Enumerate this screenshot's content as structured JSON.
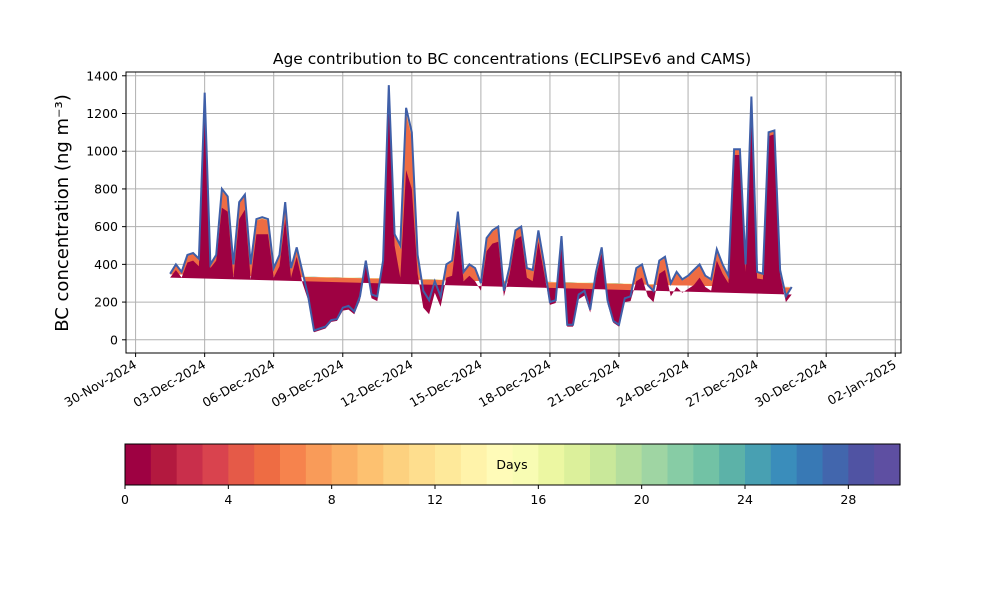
{
  "chart_data": {
    "type": "area",
    "title": "Age contribution to BC concentrations (ECLIPSEv6 and CAMS)",
    "ylabel": "BC concentration (ng m⁻³)",
    "xlabel": "",
    "ylim": [
      -70,
      1420
    ],
    "xlim": [
      "2024-11-29T14:00",
      "2025-01-02T06:00"
    ],
    "grid": true,
    "y_ticks": [
      0,
      200,
      400,
      600,
      800,
      1000,
      1200,
      1400
    ],
    "x_ticks": [
      "30-Nov-2024",
      "03-Dec-2024",
      "06-Dec-2024",
      "09-Dec-2024",
      "12-Dec-2024",
      "15-Dec-2024",
      "18-Dec-2024",
      "21-Dec-2024",
      "24-Dec-2024",
      "27-Dec-2024",
      "30-Dec-2024",
      "02-Jan-2025"
    ],
    "total_line_color": "#3f5fa8",
    "x": [
      "2024-12-01T12:00",
      "2024-12-01T18:00",
      "2024-12-02T00:00",
      "2024-12-02T06:00",
      "2024-12-02T12:00",
      "2024-12-02T18:00",
      "2024-12-03T00:00",
      "2024-12-03T06:00",
      "2024-12-03T12:00",
      "2024-12-03T18:00",
      "2024-12-04T00:00",
      "2024-12-04T06:00",
      "2024-12-04T12:00",
      "2024-12-04T18:00",
      "2024-12-05T00:00",
      "2024-12-05T06:00",
      "2024-12-05T12:00",
      "2024-12-05T18:00",
      "2024-12-06T00:00",
      "2024-12-06T06:00",
      "2024-12-06T12:00",
      "2024-12-06T18:00",
      "2024-12-07T00:00",
      "2024-12-07T06:00",
      "2024-12-07T12:00",
      "2024-12-07T18:00",
      "2024-12-08T00:00",
      "2024-12-08T06:00",
      "2024-12-08T12:00",
      "2024-12-08T18:00",
      "2024-12-09T00:00",
      "2024-12-09T06:00",
      "2024-12-09T12:00",
      "2024-12-09T18:00",
      "2024-12-10T00:00",
      "2024-12-10T06:00",
      "2024-12-10T12:00",
      "2024-12-10T18:00",
      "2024-12-11T00:00",
      "2024-12-11T06:00",
      "2024-12-11T12:00",
      "2024-12-11T18:00",
      "2024-12-12T00:00",
      "2024-12-12T06:00",
      "2024-12-12T12:00",
      "2024-12-12T18:00",
      "2024-12-13T00:00",
      "2024-12-13T06:00",
      "2024-12-13T12:00",
      "2024-12-13T18:00",
      "2024-12-14T00:00",
      "2024-12-14T06:00",
      "2024-12-14T12:00",
      "2024-12-14T18:00",
      "2024-12-15T00:00",
      "2024-12-15T06:00",
      "2024-12-15T12:00",
      "2024-12-15T18:00",
      "2024-12-16T00:00",
      "2024-12-16T06:00",
      "2024-12-16T12:00",
      "2024-12-16T18:00",
      "2024-12-17T00:00",
      "2024-12-17T06:00",
      "2024-12-17T12:00",
      "2024-12-17T18:00",
      "2024-12-18T00:00",
      "2024-12-18T06:00",
      "2024-12-18T12:00",
      "2024-12-18T18:00",
      "2024-12-19T00:00",
      "2024-12-19T06:00",
      "2024-12-19T12:00",
      "2024-12-19T18:00",
      "2024-12-20T00:00",
      "2024-12-20T06:00",
      "2024-12-20T12:00",
      "2024-12-20T18:00",
      "2024-12-21T00:00",
      "2024-12-21T06:00",
      "2024-12-21T12:00",
      "2024-12-21T18:00",
      "2024-12-22T00:00",
      "2024-12-22T06:00",
      "2024-12-22T12:00",
      "2024-12-22T18:00",
      "2024-12-23T00:00",
      "2024-12-23T06:00",
      "2024-12-23T12:00",
      "2024-12-23T18:00",
      "2024-12-24T00:00",
      "2024-12-24T06:00",
      "2024-12-24T12:00",
      "2024-12-24T18:00",
      "2024-12-25T00:00",
      "2024-12-25T06:00",
      "2024-12-25T12:00",
      "2024-12-25T18:00",
      "2024-12-26T00:00",
      "2024-12-26T06:00",
      "2024-12-26T12:00",
      "2024-12-26T18:00",
      "2024-12-27T00:00",
      "2024-12-27T06:00",
      "2024-12-27T12:00",
      "2024-12-27T18:00",
      "2024-12-28T00:00",
      "2024-12-28T06:00",
      "2024-12-28T12:00",
      "2024-12-28T18:00",
      "2024-12-29T00:00",
      "2024-12-29T06:00",
      "2024-12-29T12:00",
      "2024-12-29T18:00",
      "2024-12-30T00:00",
      "2024-12-30T06:00",
      "2024-12-30T12:00",
      "2024-12-30T18:00",
      "2024-12-31T00:00",
      "2024-12-31T06:00",
      "2024-12-31T12:00",
      "2024-12-31T18:00",
      "2025-01-01T00:00"
    ],
    "total": [
      350,
      400,
      360,
      450,
      460,
      430,
      1310,
      400,
      450,
      800,
      760,
      400,
      730,
      770,
      400,
      640,
      650,
      640,
      380,
      450,
      730,
      380,
      490,
      360,
      230,
      50,
      60,
      70,
      105,
      110,
      170,
      180,
      150,
      230,
      420,
      240,
      230,
      420,
      1350,
      560,
      500,
      1230,
      1100,
      450,
      260,
      210,
      310,
      230,
      400,
      420,
      680,
      360,
      400,
      380,
      300,
      540,
      580,
      600,
      260,
      390,
      580,
      600,
      380,
      370,
      580,
      400,
      200,
      210,
      550,
      80,
      80,
      240,
      260,
      160,
      360,
      490,
      210,
      100,
      80,
      220,
      230,
      380,
      400,
      290,
      260,
      420,
      440,
      300,
      360,
      320,
      340,
      370,
      400,
      340,
      320,
      480,
      400,
      340,
      1010,
      1010,
      400,
      1290,
      360,
      350,
      1100,
      1110,
      370,
      230,
      280
    ],
    "fresh": [
      330,
      370,
      330,
      410,
      420,
      390,
      1290,
      380,
      420,
      700,
      680,
      330,
      640,
      690,
      320,
      560,
      560,
      560,
      330,
      390,
      640,
      330,
      440,
      300,
      210,
      40,
      50,
      60,
      95,
      100,
      155,
      160,
      135,
      210,
      400,
      220,
      205,
      400,
      1320,
      500,
      330,
      900,
      800,
      350,
      170,
      135,
      250,
      175,
      330,
      340,
      600,
      310,
      340,
      310,
      260,
      470,
      510,
      520,
      230,
      350,
      530,
      550,
      330,
      310,
      520,
      350,
      185,
      195,
      520,
      70,
      70,
      215,
      235,
      145,
      330,
      460,
      190,
      90,
      70,
      200,
      205,
      310,
      330,
      230,
      200,
      350,
      370,
      230,
      280,
      250,
      270,
      290,
      330,
      280,
      260,
      420,
      350,
      300,
      980,
      980,
      360,
      1260,
      325,
      320,
      1080,
      1090,
      340,
      200,
      240
    ],
    "series": [
      {
        "name": "age_band_00_08",
        "shares": [
          0.9,
          0.91,
          0.92,
          0.93,
          0.94,
          0.95,
          0.96,
          0.97,
          0.98
        ]
      },
      {
        "name": "age_band_08_16",
        "shares": [
          0.985,
          0.99,
          0.993,
          0.996
        ]
      },
      {
        "name": "age_band_16_30",
        "shares": [
          0.998,
          1.0
        ]
      }
    ]
  },
  "colorbar": {
    "label": "Days",
    "ticks": [
      "0",
      "4",
      "8",
      "12",
      "16",
      "20",
      "24",
      "28"
    ],
    "min": 0,
    "max": 30,
    "colors": [
      "#9e0142",
      "#b3193f",
      "#c92f4b",
      "#d9434e",
      "#e55a48",
      "#ee6c43",
      "#f6834d",
      "#f99b59",
      "#fbaf64",
      "#fdc170",
      "#fdd17f",
      "#fede8e",
      "#fee99a",
      "#fff3aa",
      "#fffbb8",
      "#f8fcb3",
      "#ecf7a2",
      "#dcf09b",
      "#c9e89a",
      "#b4de9d",
      "#9fd5a3",
      "#87cca5",
      "#72c2a5",
      "#5cb2a8",
      "#48a0b2",
      "#3a8dbb",
      "#3879b5",
      "#4266ad",
      "#5053a3",
      "#5e4fa2"
    ]
  }
}
